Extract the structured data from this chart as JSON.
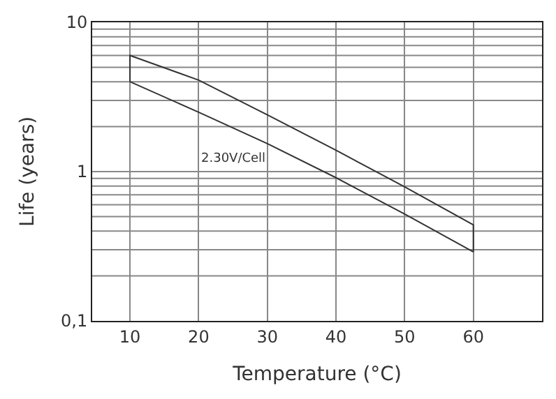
{
  "chart_data": {
    "type": "line",
    "xlabel": "Temperature (°C)",
    "ylabel": "Life (years)",
    "x": [
      10,
      20,
      30,
      40,
      50,
      60
    ],
    "series": [
      {
        "color": "#333333",
        "x": [
          10,
          10,
          20,
          30,
          40,
          50,
          60,
          60
        ],
        "values": [
          4.0,
          6.0,
          4.1,
          2.4,
          1.39,
          0.79,
          0.44,
          0.29
        ]
      },
      {
        "color": "#333333",
        "values": [
          4.0,
          2.5,
          1.54,
          0.91,
          0.52,
          0.29
        ]
      }
    ],
    "annotations": [
      "2.30V/Cell"
    ],
    "xlim": [
      4.5,
      70
    ],
    "xticks": [
      10,
      20,
      30,
      40,
      50,
      60
    ],
    "ylim": [
      0.1,
      10
    ],
    "yticks": [
      {
        "value": 0.1,
        "label": "0,1"
      },
      1,
      10
    ],
    "log": "y",
    "grid": true,
    "marker": "none",
    "line_style": "solid"
  }
}
